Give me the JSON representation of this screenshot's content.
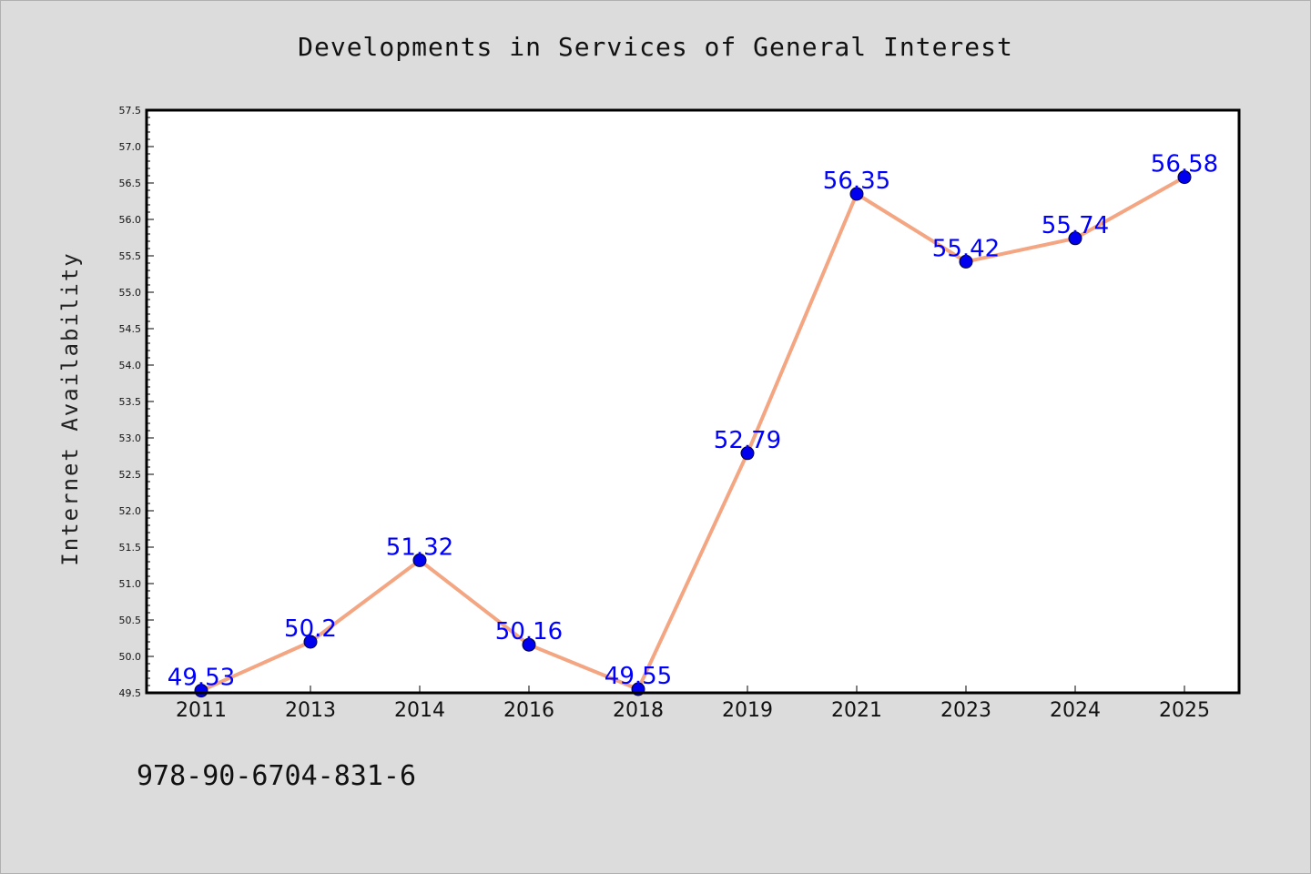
{
  "chart_data": {
    "type": "line",
    "title": "Developments in Services of General Interest",
    "xlabel": "",
    "ylabel": "Internet Availability",
    "categories": [
      "2011",
      "2013",
      "2014",
      "2016",
      "2018",
      "2019",
      "2021",
      "2023",
      "2024",
      "2025"
    ],
    "series": [
      {
        "values": [
          49.53,
          50.2,
          51.32,
          50.16,
          49.55,
          52.79,
          56.35,
          55.42,
          55.74,
          56.58
        ],
        "data_labels": [
          "49.53",
          "50.2",
          "51.32",
          "50.16",
          "49.55",
          "52.79",
          "56.35",
          "55.42",
          "55.74",
          "56.58"
        ]
      }
    ],
    "ylim": [
      49.5,
      57.5
    ],
    "yticks": [
      "49.5",
      "50.0",
      "50.5",
      "51.0",
      "51.5",
      "52.0",
      "52.5",
      "53.0",
      "53.5",
      "54.0",
      "54.5",
      "55.0",
      "55.5",
      "56.0",
      "56.5",
      "57.0",
      "57.5"
    ],
    "grid": false,
    "colors": {
      "line": "#f4a582",
      "marker": "#0000ee",
      "data_label": "#0000ff",
      "plot_background": "#ffffff",
      "figure_background": "#dcdcdc"
    }
  },
  "footer": {
    "code": "978-90-6704-831-6"
  }
}
